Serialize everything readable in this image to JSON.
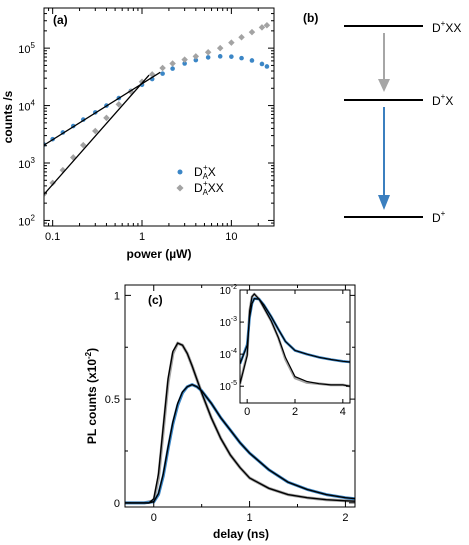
{
  "colors": {
    "blue": "#3b86c6",
    "gray": "#a3a3a3",
    "fit": "#000000",
    "arrow_gray": "#a6a6a6",
    "arrow_blue": "#3b7fbf"
  },
  "chart_data": [
    {
      "panel": "(a)",
      "type": "scatter",
      "xlabel": "power (µW)",
      "ylabel": "counts /s",
      "xscale": "log",
      "yscale": "log",
      "xlim": [
        0.08,
        30
      ],
      "ylim": [
        80,
        500000
      ],
      "xticks": [
        0.1,
        1,
        10
      ],
      "xtick_labels": [
        "0.1",
        "1",
        "10"
      ],
      "yticks": [
        100,
        1000,
        10000,
        100000
      ],
      "ytick_labels": [
        "10",
        "10",
        "10",
        "10"
      ],
      "ytick_exponents": [
        "2",
        "3",
        "4",
        "5"
      ],
      "grid": false,
      "legend_position": "bottom-right",
      "legend": [
        {
          "label_main": "D",
          "label_sub": "A",
          "label_sup": "+",
          "label_rest": "X",
          "color": "#3b86c6"
        },
        {
          "label_main": "D",
          "label_sub": "A",
          "label_sup": "+",
          "label_rest": "XX",
          "color": "#a3a3a3"
        }
      ],
      "series": [
        {
          "color": "#3b86c6",
          "x": [
            0.08,
            0.1,
            0.13,
            0.17,
            0.22,
            0.3,
            0.4,
            0.55,
            0.75,
            1.0,
            1.3,
            1.7,
            2.2,
            3.0,
            4.0,
            5.5,
            7.5,
            10,
            13,
            17,
            22,
            25
          ],
          "y": [
            2100,
            2600,
            3400,
            4400,
            5700,
            7600,
            10000,
            13500,
            18000,
            23000,
            29000,
            36000,
            44000,
            54000,
            62000,
            69000,
            72000,
            71000,
            67000,
            61000,
            53000,
            48000
          ]
        },
        {
          "color": "#a3a3a3",
          "x": [
            0.08,
            0.1,
            0.13,
            0.17,
            0.22,
            0.3,
            0.4,
            0.55,
            0.75,
            1.0,
            1.3,
            1.7,
            2.2,
            3.0,
            4.0,
            5.5,
            7.5,
            10,
            13,
            17,
            22,
            25
          ],
          "y": [
            290,
            450,
            750,
            1250,
            2050,
            3600,
            6100,
            10500,
            17500,
            26000,
            35000,
            45000,
            54000,
            63000,
            72000,
            85000,
            100000,
            125000,
            155000,
            190000,
            230000,
            250000
          ]
        }
      ],
      "fits": [
        {
          "color": "#000000",
          "x": [
            0.08,
            1.6
          ],
          "y": [
            2050,
            38000
          ]
        },
        {
          "color": "#000000",
          "x": [
            0.08,
            1.2
          ],
          "y": [
            285,
            34000
          ]
        }
      ]
    },
    {
      "panel": "(b)",
      "type": "level-diagram",
      "levels": [
        {
          "label": "D",
          "label_sup": "+",
          "label_rest": "XX"
        },
        {
          "label": "D",
          "label_sup": "+",
          "label_rest": "X"
        },
        {
          "label": "D",
          "label_sup": "+",
          "label_rest": ""
        }
      ],
      "arrows": [
        {
          "from": 0,
          "to": 1,
          "color": "#a6a6a6"
        },
        {
          "from": 1,
          "to": 2,
          "color": "#3b7fbf"
        }
      ]
    },
    {
      "panel": "(c)",
      "type": "line",
      "xlabel": "delay (ns)",
      "ylabel_main": "PL counts (x10",
      "ylabel_sup": "-2",
      "ylabel_end": ")",
      "xlim": [
        -0.3,
        2.1
      ],
      "ylim": [
        -0.02,
        1.05
      ],
      "xticks": [
        0,
        1,
        2
      ],
      "xtick_labels": [
        "0",
        "1",
        "2"
      ],
      "yticks": [
        0,
        0.5,
        1
      ],
      "ytick_labels": [
        "0",
        "0.5",
        "1"
      ],
      "grid": false,
      "series": [
        {
          "color": "#a3a3a3",
          "x": [
            -0.3,
            -0.1,
            0.0,
            0.05,
            0.1,
            0.15,
            0.2,
            0.25,
            0.3,
            0.35,
            0.4,
            0.5,
            0.6,
            0.7,
            0.8,
            0.9,
            1.0,
            1.2,
            1.4,
            1.6,
            1.8,
            2.0,
            2.1
          ],
          "y": [
            0.0,
            0.0,
            0.01,
            0.12,
            0.35,
            0.58,
            0.72,
            0.77,
            0.76,
            0.72,
            0.66,
            0.53,
            0.41,
            0.31,
            0.23,
            0.17,
            0.12,
            0.07,
            0.04,
            0.025,
            0.015,
            0.01,
            0.008
          ]
        },
        {
          "color": "#3b86c6",
          "x": [
            -0.3,
            -0.1,
            0.0,
            0.05,
            0.1,
            0.15,
            0.2,
            0.25,
            0.3,
            0.35,
            0.4,
            0.45,
            0.5,
            0.6,
            0.7,
            0.8,
            0.9,
            1.0,
            1.2,
            1.4,
            1.6,
            1.8,
            2.0,
            2.1
          ],
          "y": [
            0.0,
            0.0,
            0.005,
            0.04,
            0.13,
            0.26,
            0.38,
            0.47,
            0.53,
            0.56,
            0.57,
            0.56,
            0.54,
            0.48,
            0.41,
            0.35,
            0.29,
            0.24,
            0.16,
            0.1,
            0.065,
            0.04,
            0.025,
            0.02
          ]
        }
      ],
      "fits": [
        {
          "color": "#000000",
          "x": [
            -0.3,
            -0.05,
            0.0,
            0.05,
            0.1,
            0.15,
            0.2,
            0.25,
            0.3,
            0.35,
            0.4,
            0.5,
            0.6,
            0.7,
            0.8,
            0.9,
            1.0,
            1.2,
            1.4,
            1.6,
            1.8,
            2.0,
            2.1
          ],
          "y": [
            0.0,
            0.0,
            0.02,
            0.14,
            0.37,
            0.6,
            0.73,
            0.77,
            0.76,
            0.72,
            0.66,
            0.53,
            0.41,
            0.31,
            0.23,
            0.17,
            0.12,
            0.07,
            0.04,
            0.025,
            0.015,
            0.01,
            0.008
          ]
        },
        {
          "color": "#000000",
          "x": [
            -0.3,
            -0.05,
            0.0,
            0.05,
            0.1,
            0.15,
            0.2,
            0.25,
            0.3,
            0.35,
            0.4,
            0.45,
            0.5,
            0.6,
            0.7,
            0.8,
            0.9,
            1.0,
            1.2,
            1.4,
            1.6,
            1.8,
            2.0,
            2.1
          ],
          "y": [
            0.0,
            0.0,
            0.006,
            0.045,
            0.14,
            0.27,
            0.39,
            0.48,
            0.535,
            0.56,
            0.57,
            0.56,
            0.54,
            0.48,
            0.41,
            0.35,
            0.29,
            0.24,
            0.16,
            0.1,
            0.065,
            0.04,
            0.025,
            0.02
          ]
        }
      ],
      "inset": {
        "type": "line",
        "yscale": "log",
        "xlim": [
          -0.3,
          4.3
        ],
        "ylim": [
          3e-06,
          0.01
        ],
        "xticks": [
          0,
          2,
          4
        ],
        "xtick_labels": [
          "0",
          "2",
          "4"
        ],
        "yticks": [
          1e-05,
          0.0001,
          0.001,
          0.01
        ],
        "ytick_labels": [
          "10",
          "10",
          "10",
          "10"
        ],
        "ytick_exponents": [
          "-5",
          "-4",
          "-3",
          "-2"
        ],
        "series": [
          {
            "color": "#a3a3a3",
            "x": [
              -0.3,
              0.0,
              0.1,
              0.2,
              0.3,
              0.5,
              0.7,
              1.0,
              1.3,
              1.6,
              2.0,
              2.5,
              3.0,
              3.5,
              4.0,
              4.3
            ],
            "y": [
              1.2e-05,
              0.0001,
              0.0022,
              0.0062,
              0.0075,
              0.0052,
              0.0028,
              0.0011,
              0.00033,
              7e-05,
              1.8e-05,
              1.3e-05,
              1.2e-05,
              1.1e-05,
              1.1e-05,
              1e-05
            ]
          },
          {
            "color": "#3b86c6",
            "x": [
              -0.3,
              0.0,
              0.1,
              0.2,
              0.3,
              0.5,
              0.7,
              1.0,
              1.3,
              1.6,
              2.0,
              2.5,
              3.0,
              3.5,
              4.0,
              4.3
            ],
            "y": [
              5e-05,
              0.0002,
              0.0014,
              0.0038,
              0.0054,
              0.0052,
              0.0034,
              0.0015,
              0.0006,
              0.00025,
              0.00013,
              0.0001,
              8e-05,
              6.8e-05,
              6e-05,
              5.7e-05
            ]
          }
        ],
        "fits": [
          {
            "color": "#000000",
            "x": [
              -0.3,
              0.0,
              0.1,
              0.2,
              0.3,
              0.5,
              0.7,
              1.0,
              1.3,
              1.6,
              2.0,
              2.5,
              3.0,
              3.5,
              4.0,
              4.3
            ],
            "y": [
              1.2e-05,
              9e-05,
              0.0022,
              0.0062,
              0.0075,
              0.0052,
              0.0028,
              0.0011,
              0.00033,
              8e-05,
              2e-05,
              1.4e-05,
              1.2e-05,
              1.1e-05,
              1.1e-05,
              1e-05
            ]
          },
          {
            "color": "#000000",
            "x": [
              -0.3,
              0.0,
              0.1,
              0.2,
              0.3,
              0.5,
              0.7,
              1.0,
              1.3,
              1.6,
              2.0,
              2.5,
              3.0,
              3.5,
              4.0,
              4.3
            ],
            "y": [
              5e-05,
              0.00019,
              0.0014,
              0.0038,
              0.0054,
              0.0052,
              0.0034,
              0.0015,
              0.0006,
              0.00025,
              0.00013,
              0.0001,
              8e-05,
              6.8e-05,
              6e-05,
              5.7e-05
            ]
          }
        ]
      }
    }
  ]
}
